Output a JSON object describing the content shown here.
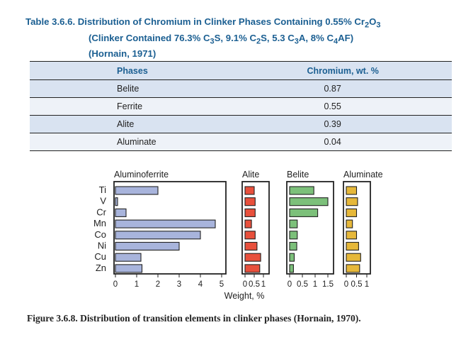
{
  "title": {
    "line1_prefix": "Table 3.6.6. Distribution of Chromium in Clinker Phases Containing 0.55% Cr",
    "line1_sub": "2",
    "line1_o": "O",
    "line1_sub2": "3",
    "line2": [
      {
        "t": "(Clinker Contained 76.3% C"
      },
      {
        "s": "3"
      },
      {
        "t": "S, 9.1% C"
      },
      {
        "s": "2"
      },
      {
        "t": "S, 5.3 C"
      },
      {
        "s": "3"
      },
      {
        "t": "A, 8% C"
      },
      {
        "s": "4"
      },
      {
        "t": "AF)"
      }
    ],
    "line3": "(Hornain, 1971)"
  },
  "table": {
    "headers": [
      "Phases",
      "Chromium, wt. %"
    ],
    "rows": [
      [
        "Belite",
        "0.87"
      ],
      [
        "Ferrite",
        "0.55"
      ],
      [
        "Alite",
        "0.39"
      ],
      [
        "Aluminate",
        "0.04"
      ]
    ]
  },
  "figure": {
    "elements": [
      "Ti",
      "V",
      "Cr",
      "Mn",
      "Co",
      "Ni",
      "Cu",
      "Zn"
    ],
    "xlabel": "Weight, %",
    "caption": "Figure 3.6.8. Distribution of transition elements in clinker phases (Hornain, 1970)."
  },
  "chart_data": [
    {
      "type": "bar",
      "title": "Aluminoferrite",
      "categories": [
        "Ti",
        "V",
        "Cr",
        "Mn",
        "Co",
        "Ni",
        "Cu",
        "Zn"
      ],
      "values": [
        2.0,
        0.1,
        0.5,
        4.7,
        4.0,
        3.0,
        1.2,
        1.25
      ],
      "xlim": [
        0,
        5
      ],
      "ticks": [
        "0",
        "1",
        "2",
        "3",
        "4",
        "5"
      ],
      "color": "#a8b4dc"
    },
    {
      "type": "bar",
      "title": "Alite",
      "categories": [
        "Ti",
        "V",
        "Cr",
        "Mn",
        "Co",
        "Ni",
        "Cu",
        "Zn"
      ],
      "values": [
        0.5,
        0.55,
        0.55,
        0.35,
        0.55,
        0.65,
        0.85,
        0.8
      ],
      "xlim": [
        0,
        1
      ],
      "ticks": [
        "0",
        "0.5",
        "1"
      ],
      "color": "#e8503c"
    },
    {
      "type": "bar",
      "title": "Belite",
      "categories": [
        "Ti",
        "V",
        "Cr",
        "Mn",
        "Co",
        "Ni",
        "Cu",
        "Zn"
      ],
      "values": [
        0.95,
        1.5,
        1.1,
        0.3,
        0.3,
        0.28,
        0.18,
        0.15
      ],
      "xlim": [
        0,
        1.5
      ],
      "ticks": [
        "0",
        "0.5",
        "1",
        "1.5"
      ],
      "color": "#7cc07a"
    },
    {
      "type": "bar",
      "title": "Aluminate",
      "categories": [
        "Ti",
        "V",
        "Cr",
        "Mn",
        "Co",
        "Ni",
        "Cu",
        "Zn"
      ],
      "values": [
        0.5,
        0.55,
        0.5,
        0.3,
        0.5,
        0.6,
        0.7,
        0.65
      ],
      "xlim": [
        0,
        1
      ],
      "ticks": [
        "0",
        "0.5",
        "1"
      ],
      "color": "#e6b83a"
    }
  ]
}
